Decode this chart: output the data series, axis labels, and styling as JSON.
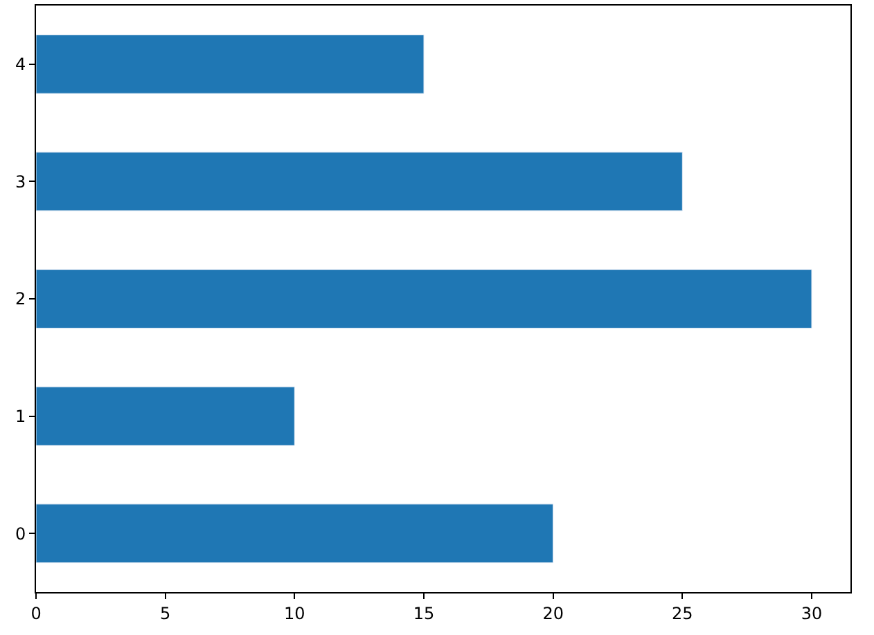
{
  "chart_data": {
    "type": "bar",
    "orientation": "horizontal",
    "categories": [
      "4",
      "3",
      "2",
      "1",
      "0"
    ],
    "values": [
      15,
      25,
      30,
      10,
      20
    ],
    "color": "#1f77b4",
    "xlim": [
      0,
      31.5
    ],
    "xticks": [
      0,
      5,
      10,
      15,
      20,
      25,
      30
    ]
  }
}
